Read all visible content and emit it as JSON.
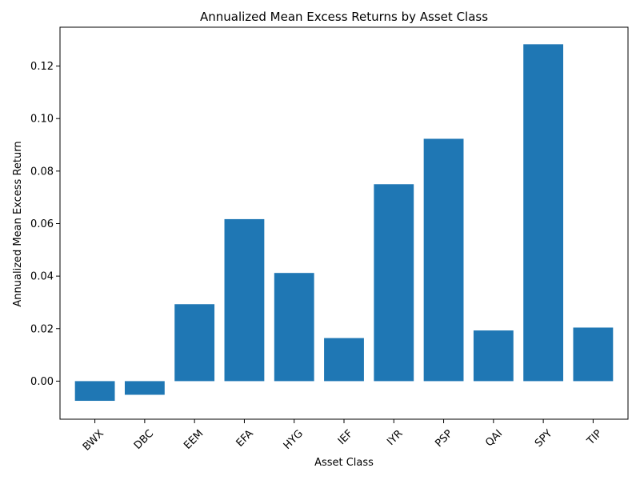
{
  "chart_data": {
    "type": "bar",
    "title": "Annualized Mean Excess Returns by Asset Class",
    "xlabel": "Asset Class",
    "ylabel": "Annualized Mean Excess Return",
    "categories": [
      "BWX",
      "DBC",
      "EEM",
      "EFA",
      "HYG",
      "IEF",
      "IYR",
      "PSP",
      "QAI",
      "SPY",
      "TIP"
    ],
    "values": [
      -0.0075,
      -0.0052,
      0.0293,
      0.0617,
      0.0412,
      0.0164,
      0.075,
      0.0923,
      0.0193,
      0.1283,
      0.0204
    ],
    "ylim": [
      -0.0145,
      0.1348
    ],
    "yticks": [
      0.0,
      0.02,
      0.04,
      0.06,
      0.08,
      0.1,
      0.12
    ],
    "ytick_labels": [
      "0.00",
      "0.02",
      "0.04",
      "0.06",
      "0.08",
      "0.10",
      "0.12"
    ],
    "bar_color": "#1f77b4",
    "grid": false,
    "x_tick_rotation": 45
  }
}
